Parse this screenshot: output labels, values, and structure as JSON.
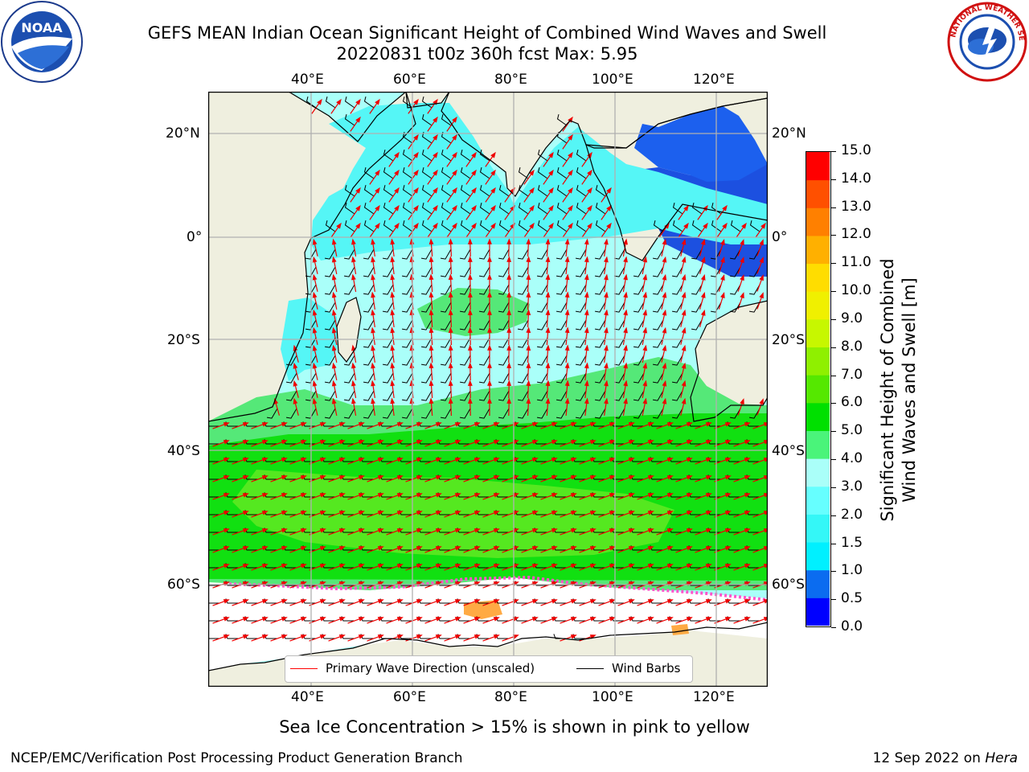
{
  "header": {
    "title_line1": "GEFS MEAN Indian Ocean Significant Height of Combined Wind Waves and Swell",
    "title_line2": "20220831 t00z 360h fcst   Max: 5.95"
  },
  "logos": {
    "left": {
      "icon": "noaa-logo",
      "text": "NOAA"
    },
    "right": {
      "icon": "nws-logo",
      "text": "NATIONAL WEATHER SERVICE"
    }
  },
  "map": {
    "lon_ticks": [
      "40°E",
      "60°E",
      "80°E",
      "100°E",
      "120°E"
    ],
    "lat_ticks": [
      "20°N",
      "0°",
      "20°S",
      "40°S",
      "60°S"
    ],
    "land_color": "#efefdf",
    "ice_colors": [
      "#ff55cc",
      "#ffaa44",
      "#ffe066"
    ]
  },
  "legend": {
    "items": [
      {
        "label": "Primary Wave Direction (unscaled)",
        "color": "#ff0000"
      },
      {
        "label": "Wind Barbs",
        "color": "#000000"
      }
    ]
  },
  "colorbar": {
    "label_line1": "Significant Height of Combined",
    "label_line2": "Wind Waves and Swell [m]",
    "ticks": [
      "0.0",
      "0.5",
      "1.0",
      "1.5",
      "2.0",
      "3.0",
      "4.0",
      "5.0",
      "6.0",
      "7.0",
      "8.0",
      "9.0",
      "10.0",
      "11.0",
      "12.0",
      "13.0",
      "14.0",
      "15.0"
    ],
    "colors": [
      "#0000ff",
      "#0b6cf0",
      "#00f0ff",
      "#34f7f7",
      "#66ffff",
      "#aafff9",
      "#4af47a",
      "#00e000",
      "#55e800",
      "#8ff000",
      "#c7f700",
      "#f0f000",
      "#ffdd00",
      "#ffb000",
      "#ff8000",
      "#ff5000",
      "#ff0000"
    ]
  },
  "footer": {
    "ice_note": "Sea Ice Concentration > 15% is shown in pink to yellow",
    "left": "NCEP/EMC/Verification Post Processing Product Generation Branch",
    "right_date": "12 Sep 2022 on ",
    "right_host": "Hera"
  }
}
